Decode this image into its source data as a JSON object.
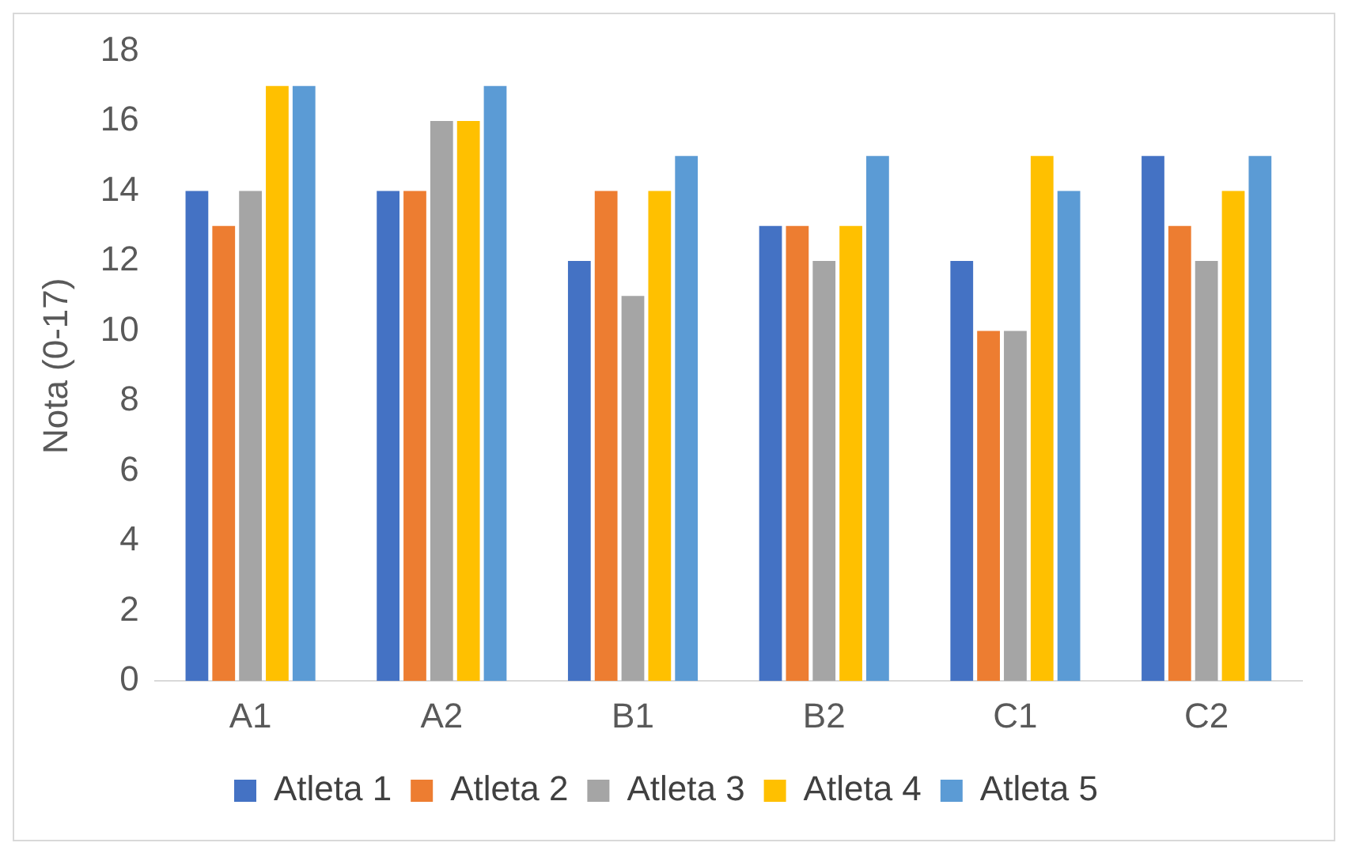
{
  "chart_data": {
    "type": "bar",
    "ylabel": "Nota (0-17)",
    "categories": [
      "A1",
      "A2",
      "B1",
      "B2",
      "C1",
      "C2"
    ],
    "series": [
      {
        "name": "Atleta 1",
        "color": "#4472c4",
        "values": [
          14,
          14,
          12,
          13,
          12,
          15
        ]
      },
      {
        "name": "Atleta 2",
        "color": "#ed7d31",
        "values": [
          13,
          14,
          14,
          13,
          10,
          13
        ]
      },
      {
        "name": "Atleta 3",
        "color": "#a5a5a5",
        "values": [
          14,
          16,
          11,
          12,
          10,
          12
        ]
      },
      {
        "name": "Atleta 4",
        "color": "#ffc000",
        "values": [
          17,
          16,
          14,
          13,
          15,
          14
        ]
      },
      {
        "name": "Atleta 5",
        "color": "#5b9bd5",
        "values": [
          17,
          17,
          15,
          15,
          14,
          15
        ]
      }
    ],
    "ylim": [
      0,
      18
    ],
    "yticks": [
      0,
      2,
      4,
      6,
      8,
      10,
      12,
      14,
      16,
      18
    ],
    "grid": false,
    "legend": "bottom"
  }
}
